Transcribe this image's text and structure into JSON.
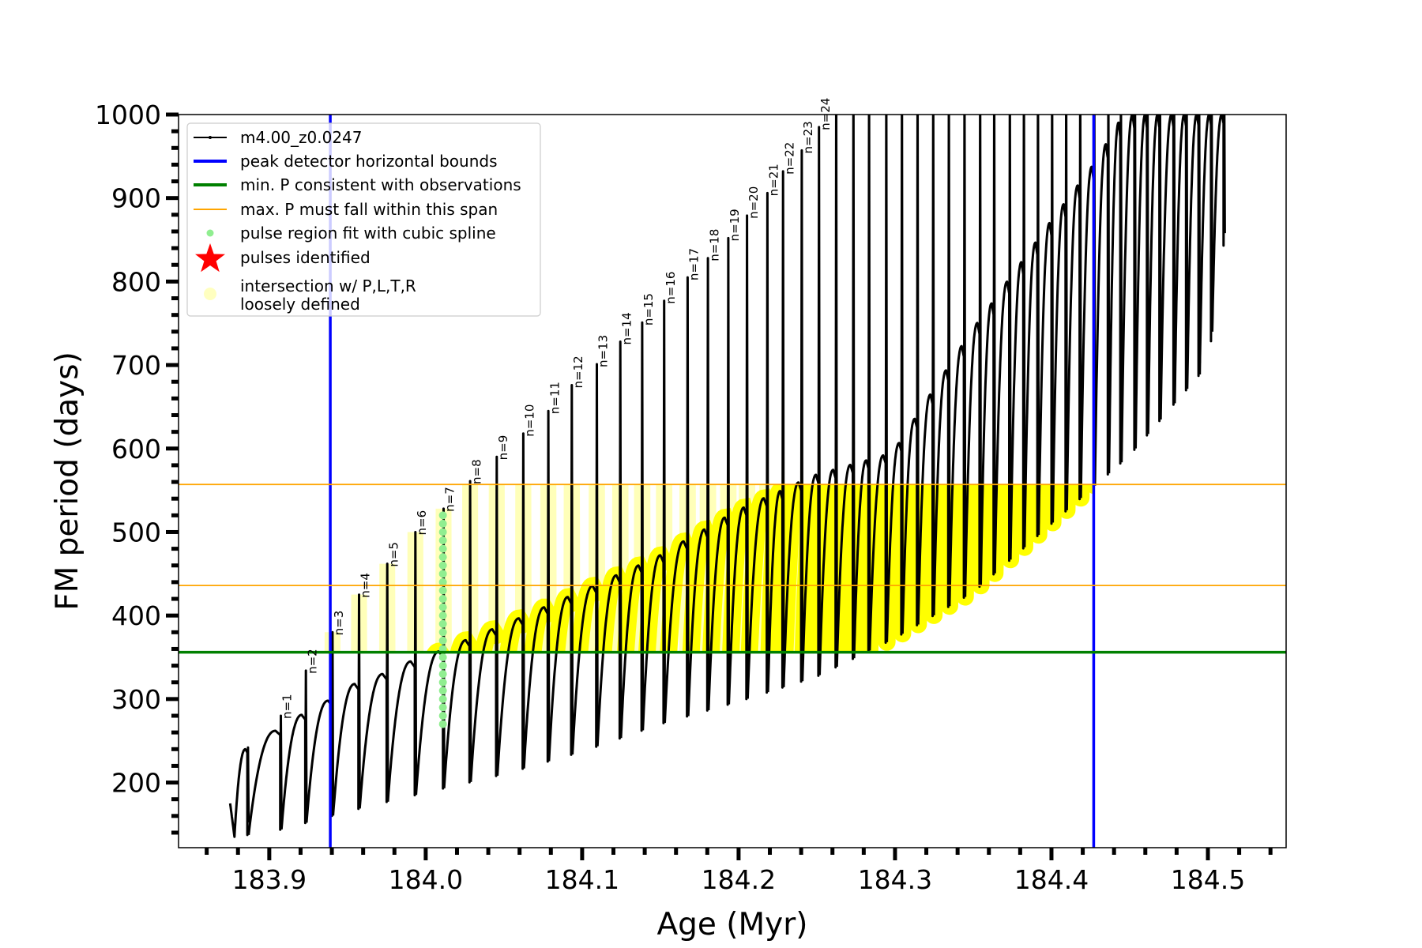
{
  "chart_data": {
    "type": "line",
    "title": "",
    "xlabel": "Age (Myr)",
    "ylabel": "FM period (days)",
    "xlim": [
      183.842,
      184.55
    ],
    "ylim": [
      122,
      1000
    ],
    "xticks": [
      "183.9",
      "184.0",
      "184.1",
      "184.2",
      "184.3",
      "184.4",
      "184.5"
    ],
    "yticks": [
      "200",
      "300",
      "400",
      "500",
      "600",
      "700",
      "800",
      "900",
      "1000"
    ],
    "grid": false,
    "legend_position": "top-left",
    "legend": [
      {
        "label": "m4.00_z0.0247",
        "kind": "line-marker",
        "color": "#000000"
      },
      {
        "label": "peak detector horizontal bounds",
        "kind": "line",
        "color": "#0000ff"
      },
      {
        "label": "min. P consistent with observations",
        "kind": "line",
        "color": "#008000"
      },
      {
        "label": "max. P must fall within this span",
        "kind": "thin-line",
        "color": "#ffa500"
      },
      {
        "label": "pulse region fit with cubic spline",
        "kind": "dot",
        "color": "#90ee90"
      },
      {
        "label": "pulses identified",
        "kind": "star",
        "color": "#ff0000"
      },
      {
        "label": "intersection w/ P,L,T,R\nloosely defined",
        "label_lines": [
          "intersection w/ P,L,T,R",
          "loosely defined"
        ],
        "kind": "circle",
        "color": "#ffffc0"
      }
    ],
    "vertical_bounds_age": [
      183.939,
      184.427
    ],
    "min_period_line": 356,
    "max_period_span": [
      436,
      557
    ],
    "spline_pulse": {
      "n": 7,
      "P_range": [
        270,
        525
      ]
    },
    "pulses": [
      {
        "n": 1,
        "label": "n=1",
        "age": 183.907,
        "peak": 280
      },
      {
        "n": 2,
        "label": "n=2",
        "age": 183.923,
        "peak": 334
      },
      {
        "n": 3,
        "label": "n=3",
        "age": 183.94,
        "peak": 380
      },
      {
        "n": 4,
        "label": "n=4",
        "age": 183.957,
        "peak": 425
      },
      {
        "n": 5,
        "label": "n=5",
        "age": 183.975,
        "peak": 462
      },
      {
        "n": 6,
        "label": "n=6",
        "age": 183.993,
        "peak": 500
      },
      {
        "n": 7,
        "label": "n=7",
        "age": 184.011,
        "peak": 528
      },
      {
        "n": 8,
        "label": "n=8",
        "age": 184.028,
        "peak": 561
      },
      {
        "n": 9,
        "label": "n=9",
        "age": 184.045,
        "peak": 590
      },
      {
        "n": 10,
        "label": "n=10",
        "age": 184.062,
        "peak": 618
      },
      {
        "n": 11,
        "label": "n=11",
        "age": 184.078,
        "peak": 645
      },
      {
        "n": 12,
        "label": "n=12",
        "age": 184.093,
        "peak": 676
      },
      {
        "n": 13,
        "label": "n=13",
        "age": 184.109,
        "peak": 701
      },
      {
        "n": 14,
        "label": "n=14",
        "age": 184.124,
        "peak": 728
      },
      {
        "n": 15,
        "label": "n=15",
        "age": 184.138,
        "peak": 751
      },
      {
        "n": 16,
        "label": "n=16",
        "age": 184.152,
        "peak": 777
      },
      {
        "n": 17,
        "label": "n=17",
        "age": 184.167,
        "peak": 805
      },
      {
        "n": 18,
        "label": "n=18",
        "age": 184.18,
        "peak": 828
      },
      {
        "n": 19,
        "label": "n=19",
        "age": 184.193,
        "peak": 852
      },
      {
        "n": 20,
        "label": "n=20",
        "age": 184.205,
        "peak": 879
      },
      {
        "n": 21,
        "label": "n=21",
        "age": 184.218,
        "peak": 906
      },
      {
        "n": 22,
        "label": "n=22",
        "age": 184.228,
        "peak": 932
      },
      {
        "n": 23,
        "label": "n=23",
        "age": 184.24,
        "peak": 957
      },
      {
        "n": 24,
        "label": "n=24",
        "age": 184.251,
        "peak": 985
      }
    ],
    "later_pulse_ages": [
      184.262,
      184.273,
      184.283,
      184.294,
      184.304,
      184.314,
      184.324,
      184.334,
      184.344,
      184.354,
      184.363,
      184.373,
      184.382,
      184.391,
      184.4,
      184.409,
      184.418,
      184.427,
      184.436,
      184.444,
      184.453,
      184.461,
      184.469,
      184.478,
      184.486,
      184.494,
      184.502,
      184.51
    ],
    "later_pulse_peak": 1050,
    "first_pulse_age": 183.886,
    "series_start": {
      "age": 183.875,
      "P": 175
    },
    "hump_envelope": [
      [
        183.875,
        175
      ],
      [
        183.886,
        240
      ],
      [
        183.907,
        262
      ],
      [
        183.923,
        281
      ],
      [
        183.94,
        298
      ],
      [
        183.957,
        318
      ],
      [
        183.975,
        330
      ],
      [
        183.993,
        345
      ],
      [
        184.011,
        357
      ],
      [
        184.03,
        372
      ],
      [
        184.06,
        395
      ],
      [
        184.1,
        428
      ],
      [
        184.15,
        470
      ],
      [
        184.2,
        525
      ],
      [
        184.25,
        568
      ],
      [
        184.3,
        595
      ],
      [
        184.35,
        740
      ],
      [
        184.4,
        870
      ],
      [
        184.43,
        945
      ],
      [
        184.447,
        1000
      ],
      [
        184.52,
        1000
      ]
    ],
    "dip_envelope": [
      [
        183.875,
        135
      ],
      [
        183.9,
        140
      ],
      [
        183.94,
        160
      ],
      [
        183.96,
        170
      ],
      [
        184.0,
        188
      ],
      [
        184.05,
        210
      ],
      [
        184.1,
        237
      ],
      [
        184.15,
        270
      ],
      [
        184.2,
        297
      ],
      [
        184.25,
        327
      ],
      [
        184.3,
        373
      ],
      [
        184.35,
        428
      ],
      [
        184.4,
        510
      ],
      [
        184.45,
        592
      ],
      [
        184.5,
        700
      ],
      [
        184.51,
        843
      ]
    ]
  }
}
